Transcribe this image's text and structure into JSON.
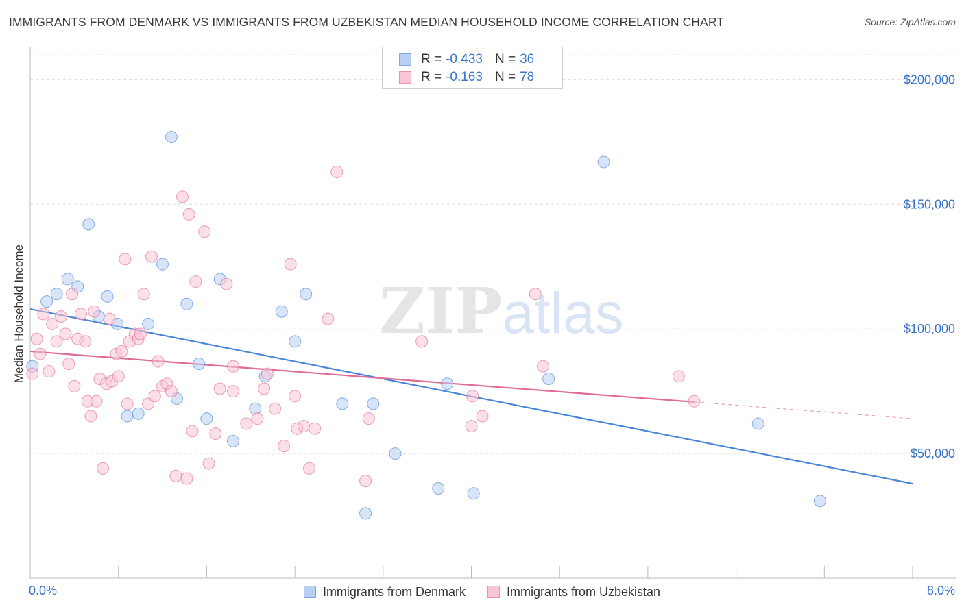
{
  "title": "IMMIGRANTS FROM DENMARK VS IMMIGRANTS FROM UZBEKISTAN MEDIAN HOUSEHOLD INCOME CORRELATION CHART",
  "source": "Source: ZipAtlas.com",
  "watermark": {
    "zip": "ZIP",
    "atlas": "atlas"
  },
  "legend_stats": [
    {
      "r_label": "R =",
      "r_value": "-0.433",
      "n_label": "N =",
      "n_value": "36",
      "fill": "#b8d0f3",
      "stroke": "#7aa7e0"
    },
    {
      "r_label": "R =",
      "r_value": "-0.163",
      "n_label": "N =",
      "n_value": "78",
      "fill": "#f9c6d5",
      "stroke": "#ee8fab"
    }
  ],
  "chart_data": {
    "type": "scatter",
    "title": "IMMIGRANTS FROM DENMARK VS IMMIGRANTS FROM UZBEKISTAN MEDIAN HOUSEHOLD INCOME CORRELATION CHART",
    "xlabel": "",
    "ylabel": "Median Household Income",
    "xlim": [
      0,
      8
    ],
    "ylim": [
      0,
      210000
    ],
    "x_tick_labels": [
      "0.0%",
      "8.0%"
    ],
    "y_ticks": [
      {
        "value": 50000,
        "label": "$50,000"
      },
      {
        "value": 100000,
        "label": "$100,000"
      },
      {
        "value": 150000,
        "label": "$150,000"
      },
      {
        "value": 200000,
        "label": "$200,000"
      }
    ],
    "grid": true,
    "legend_position": "bottom",
    "series": [
      {
        "name": "Immigrants from Denmark",
        "color": "#4a86d8",
        "fill": "#b8d0f3",
        "trend": {
          "x0": 0.0,
          "y0": 108000,
          "x1": 8.0,
          "y1": 37900,
          "dash_from": 8.0
        },
        "points": [
          [
            0.02,
            85000
          ],
          [
            0.15,
            111000
          ],
          [
            0.24,
            114000
          ],
          [
            0.34,
            120000
          ],
          [
            0.43,
            117000
          ],
          [
            0.53,
            142000
          ],
          [
            0.62,
            105000
          ],
          [
            0.7,
            113000
          ],
          [
            0.79,
            102000
          ],
          [
            0.88,
            65000
          ],
          [
            0.98,
            66000
          ],
          [
            1.07,
            102000
          ],
          [
            1.2,
            126000
          ],
          [
            1.28,
            177000
          ],
          [
            1.33,
            72000
          ],
          [
            1.42,
            110000
          ],
          [
            1.53,
            86000
          ],
          [
            1.6,
            64000
          ],
          [
            1.72,
            120000
          ],
          [
            1.84,
            55000
          ],
          [
            2.04,
            68000
          ],
          [
            2.13,
            81000
          ],
          [
            2.28,
            107000
          ],
          [
            2.4,
            95000
          ],
          [
            2.5,
            114000
          ],
          [
            2.83,
            70000
          ],
          [
            3.04,
            26000
          ],
          [
            3.11,
            70000
          ],
          [
            3.31,
            50000
          ],
          [
            3.7,
            36000
          ],
          [
            3.78,
            78000
          ],
          [
            4.02,
            34000
          ],
          [
            4.7,
            80000
          ],
          [
            5.2,
            167000
          ],
          [
            6.6,
            62000
          ],
          [
            7.16,
            31000
          ]
        ]
      },
      {
        "name": "Immigrants from Uzbekistan",
        "color": "#e06b96",
        "fill": "#f9c6d5",
        "trend": {
          "x0": 0.0,
          "y0": 91000,
          "x1": 8.0,
          "y1": 64000,
          "dash_from": 6.02
        },
        "points": [
          [
            0.02,
            82000
          ],
          [
            0.06,
            96000
          ],
          [
            0.09,
            90000
          ],
          [
            0.12,
            106000
          ],
          [
            0.17,
            83000
          ],
          [
            0.2,
            102000
          ],
          [
            0.24,
            95000
          ],
          [
            0.28,
            105000
          ],
          [
            0.32,
            98000
          ],
          [
            0.35,
            86000
          ],
          [
            0.38,
            114000
          ],
          [
            0.4,
            77000
          ],
          [
            0.43,
            96000
          ],
          [
            0.46,
            106000
          ],
          [
            0.5,
            95000
          ],
          [
            0.52,
            71000
          ],
          [
            0.55,
            65000
          ],
          [
            0.58,
            107000
          ],
          [
            0.6,
            71000
          ],
          [
            0.63,
            80000
          ],
          [
            0.66,
            44000
          ],
          [
            0.69,
            78000
          ],
          [
            0.72,
            104000
          ],
          [
            0.74,
            79000
          ],
          [
            0.78,
            90000
          ],
          [
            0.8,
            81000
          ],
          [
            0.83,
            91000
          ],
          [
            0.86,
            128000
          ],
          [
            0.88,
            70000
          ],
          [
            0.9,
            95000
          ],
          [
            0.95,
            98000
          ],
          [
            0.98,
            96000
          ],
          [
            1.0,
            98000
          ],
          [
            1.03,
            114000
          ],
          [
            1.07,
            70000
          ],
          [
            1.1,
            129000
          ],
          [
            1.13,
            73000
          ],
          [
            1.16,
            87000
          ],
          [
            1.2,
            77000
          ],
          [
            1.24,
            78000
          ],
          [
            1.28,
            75000
          ],
          [
            1.32,
            41000
          ],
          [
            1.38,
            153000
          ],
          [
            1.42,
            40000
          ],
          [
            1.44,
            146000
          ],
          [
            1.47,
            59000
          ],
          [
            1.5,
            119000
          ],
          [
            1.58,
            139000
          ],
          [
            1.62,
            46000
          ],
          [
            1.68,
            58000
          ],
          [
            1.72,
            76000
          ],
          [
            1.78,
            118000
          ],
          [
            1.84,
            85000
          ],
          [
            1.84,
            75000
          ],
          [
            1.96,
            62000
          ],
          [
            2.06,
            64000
          ],
          [
            2.12,
            76000
          ],
          [
            2.15,
            82000
          ],
          [
            2.22,
            68000
          ],
          [
            2.3,
            53000
          ],
          [
            2.36,
            126000
          ],
          [
            2.4,
            73000
          ],
          [
            2.42,
            60000
          ],
          [
            2.48,
            61000
          ],
          [
            2.53,
            44000
          ],
          [
            2.58,
            60000
          ],
          [
            2.7,
            104000
          ],
          [
            2.78,
            163000
          ],
          [
            3.04,
            39000
          ],
          [
            3.07,
            64000
          ],
          [
            3.55,
            95000
          ],
          [
            4.0,
            61000
          ],
          [
            4.01,
            73000
          ],
          [
            4.1,
            65000
          ],
          [
            4.58,
            114000
          ],
          [
            4.65,
            85000
          ],
          [
            5.88,
            81000
          ],
          [
            6.02,
            71000
          ]
        ]
      }
    ]
  }
}
